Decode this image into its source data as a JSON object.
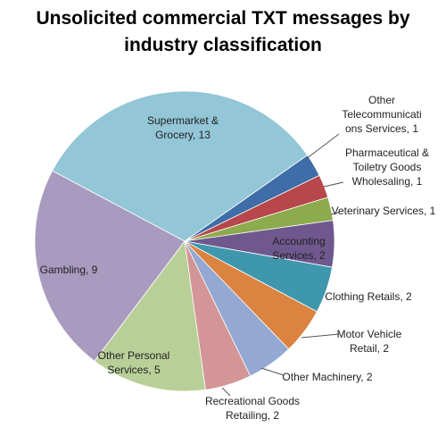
{
  "chart_data": {
    "type": "pie",
    "title": "Unsolicited commercial TXT messages by industry classification",
    "categories": [
      "Other Telecommunications Services, 1",
      "Pharmaceutical & Toiletry Goods Wholesaling, 1",
      "Veterinary Services, 1",
      "Accounting Services, 2",
      "Clothing Retails, 2",
      "Motor Vehicle Retail, 2",
      "Other Machinery, 2",
      "Recreational Goods Retailing, 2",
      "Other Personal Services, 5",
      "Gambling, 9",
      "Supermarket & Grocery, 13"
    ],
    "values": [
      1,
      1,
      1,
      2,
      2,
      2,
      2,
      2,
      5,
      9,
      13
    ],
    "colors": [
      "#3e6da8",
      "#b7474a",
      "#8cab4c",
      "#6f588e",
      "#3f97ae",
      "#db8340",
      "#93a9d3",
      "#d39595",
      "#b9cf98",
      "#a89bbf",
      "#93c6d7"
    ]
  }
}
